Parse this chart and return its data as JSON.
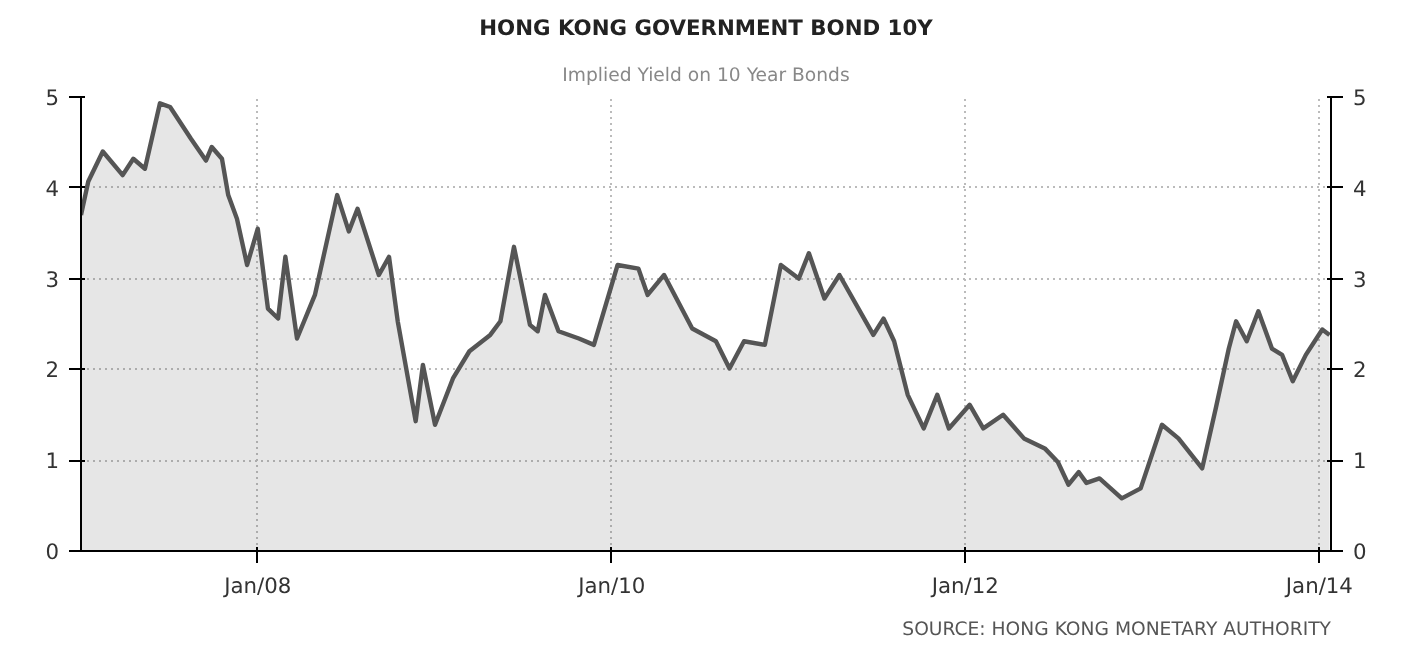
{
  "chart_data": {
    "type": "area",
    "title": "HONG KONG GOVERNMENT BOND 10Y",
    "subtitle": "Implied Yield on 10 Year Bonds",
    "annotations": [
      "SOURCE: HONG KONG MONETARY AUTHORITY"
    ],
    "x": [
      "2007-01-01",
      "2007-01-16",
      "2007-02-15",
      "2007-03-28",
      "2007-04-19",
      "2007-05-13",
      "2007-06-13",
      "2007-07-04",
      "2007-08-16",
      "2007-09-16",
      "2007-09-28",
      "2007-10-19",
      "2007-11-01",
      "2007-11-19",
      "2007-12-10",
      "2008-01-01",
      "2008-01-22",
      "2008-02-12",
      "2008-02-27",
      "2008-03-22",
      "2008-04-28",
      "2008-06-13",
      "2008-07-07",
      "2008-07-25",
      "2008-09-07",
      "2008-09-28",
      "2008-10-16",
      "2008-11-22",
      "2008-12-07",
      "2009-01-01",
      "2009-02-07",
      "2009-03-13",
      "2009-04-25",
      "2009-05-16",
      "2009-06-13",
      "2009-07-16",
      "2009-08-01",
      "2009-08-16",
      "2009-09-13",
      "2009-10-25",
      "2009-11-25",
      "2010-01-13",
      "2010-02-25",
      "2010-03-16",
      "2010-04-19",
      "2010-06-16",
      "2010-08-04",
      "2010-09-01",
      "2010-10-01",
      "2010-11-13",
      "2010-12-16",
      "2011-01-22",
      "2011-02-12",
      "2011-03-16",
      "2011-04-16",
      "2011-06-25",
      "2011-07-16",
      "2011-08-07",
      "2011-09-04",
      "2011-10-07",
      "2011-11-04",
      "2011-11-28",
      "2012-01-10",
      "2012-02-07",
      "2012-03-19",
      "2012-05-01",
      "2012-06-13",
      "2012-07-10",
      "2012-08-01",
      "2012-08-22",
      "2012-09-07",
      "2012-10-04",
      "2012-11-19",
      "2012-12-28",
      "2013-02-10",
      "2013-03-16",
      "2013-05-04",
      "2013-06-01",
      "2013-06-28",
      "2013-07-13",
      "2013-08-04",
      "2013-08-28",
      "2013-09-25",
      "2013-10-16",
      "2013-11-07",
      "2013-12-04",
      "2014-01-07",
      "2014-01-22"
    ],
    "series": [
      {
        "color": "#555555",
        "values": [
          3.7,
          4.07,
          4.4,
          4.14,
          4.32,
          4.21,
          4.93,
          4.89,
          4.54,
          4.3,
          4.45,
          4.32,
          3.92,
          3.66,
          3.15,
          3.55,
          2.67,
          2.56,
          3.24,
          2.34,
          2.82,
          3.92,
          3.52,
          3.77,
          3.04,
          3.24,
          2.53,
          1.43,
          2.05,
          1.39,
          1.9,
          2.2,
          2.38,
          2.53,
          3.35,
          2.49,
          2.42,
          2.82,
          2.42,
          2.34,
          2.27,
          3.15,
          3.11,
          2.82,
          3.04,
          2.45,
          2.31,
          2.01,
          2.31,
          2.27,
          3.15,
          3.0,
          3.28,
          2.78,
          3.04,
          2.38,
          2.56,
          2.31,
          1.72,
          1.35,
          1.72,
          1.35,
          1.61,
          1.35,
          1.5,
          1.24,
          1.13,
          0.98,
          0.73,
          0.87,
          0.75,
          0.8,
          0.58,
          0.69,
          1.39,
          1.24,
          0.91,
          1.57,
          2.23,
          2.53,
          2.31,
          2.64,
          2.23,
          2.16,
          1.87,
          2.16,
          2.44,
          2.38
        ]
      }
    ],
    "xlim": [
      "2007-01-01",
      "2014-01-25"
    ],
    "xticks": [
      {
        "value": "2008-01-01",
        "label": "Jan/08"
      },
      {
        "value": "2010-01-01",
        "label": "Jan/10"
      },
      {
        "value": "2012-01-01",
        "label": "Jan/12"
      },
      {
        "value": "2014-01-01",
        "label": "Jan/14"
      }
    ],
    "ylim": [
      0,
      5
    ],
    "yticks": [
      0,
      1,
      2,
      3,
      4,
      5
    ],
    "y2lim": [
      0,
      5
    ],
    "y2ticks": [
      0,
      1,
      2,
      3,
      4,
      5
    ],
    "grid": true,
    "line_style": "solid"
  }
}
